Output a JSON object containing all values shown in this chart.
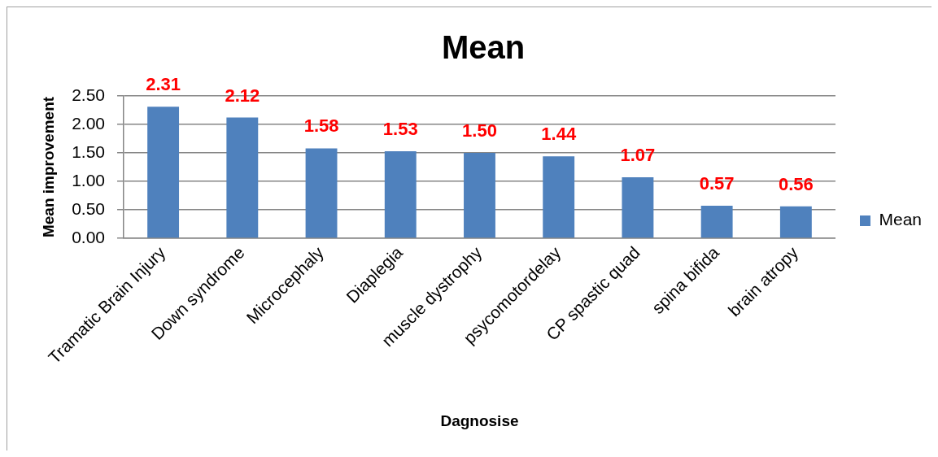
{
  "chart_data": {
    "type": "bar",
    "title": "Mean",
    "xlabel": "Dagnosise",
    "ylabel": "Mean improvement",
    "categories": [
      "Tramatic Brain Injury",
      "Down syndrome",
      "Microcephaly",
      "Diaplegia",
      "muscle dystrophy",
      "psycomotordelay",
      "CP spastic quad",
      "spina bifida",
      "brain atropy"
    ],
    "series": [
      {
        "name": "Mean",
        "color": "#4f81bd",
        "values": [
          2.31,
          2.12,
          1.58,
          1.53,
          1.5,
          1.44,
          1.07,
          0.57,
          0.56
        ],
        "value_labels": [
          "2.31",
          "2.12",
          "1.58",
          "1.53",
          "1.50",
          "1.44",
          "1.07",
          "0.57",
          "0.56"
        ]
      }
    ],
    "ylim": [
      0,
      2.5
    ],
    "yticks": [
      {
        "value": 0,
        "label": "0.00"
      },
      {
        "value": 0.5,
        "label": "0.50"
      },
      {
        "value": 1,
        "label": "1.00"
      },
      {
        "value": 1.5,
        "label": "1.50"
      },
      {
        "value": 2,
        "label": "2.00"
      },
      {
        "value": 2.5,
        "label": "2.50"
      }
    ],
    "grid": "y",
    "legend": "right"
  }
}
